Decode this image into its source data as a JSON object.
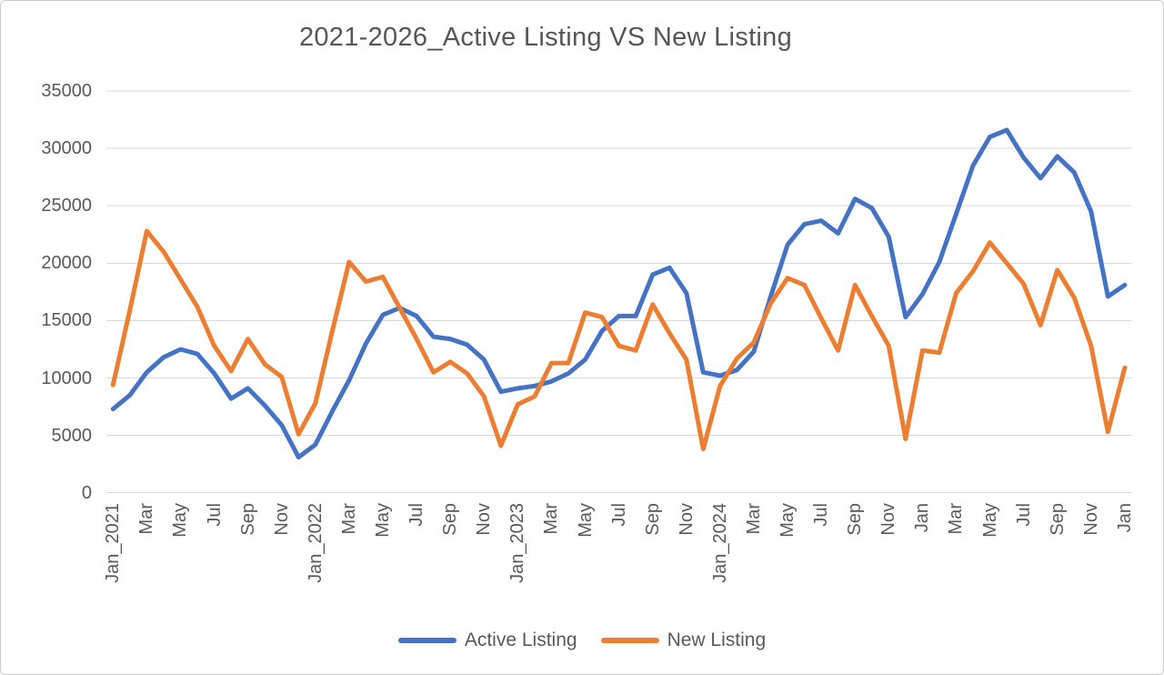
{
  "title": "2021-2026_Active Listing VS New Listing",
  "colors": {
    "active_listing": "#4472C4",
    "new_listing": "#ED7D31",
    "gridline": "#D9D9D9",
    "axis_text": "#595959",
    "title_text": "#565656",
    "background": "#FFFFFF"
  },
  "legend": {
    "position": "bottom",
    "items": [
      {
        "label": "Active Listing",
        "color": "#4472C4"
      },
      {
        "label": "New Listing",
        "color": "#ED7D31"
      }
    ]
  },
  "chart_data": {
    "type": "line",
    "title": "2021-2026_Active Listing VS New Listing",
    "xlabel": "",
    "ylabel": "",
    "ylim": [
      0,
      35000
    ],
    "y_ticks": [
      0,
      5000,
      10000,
      15000,
      20000,
      25000,
      30000,
      35000
    ],
    "grid": "horizontal",
    "legend_position": "bottom",
    "x_range": "Jan 2021 to Jan 2026, monthly, 61 points",
    "x_label_every_n_months": 2,
    "x_tick_labels": [
      "Jan_2021",
      "Mar",
      "May",
      "Jul",
      "Sep",
      "Nov",
      "Jan_2022",
      "Mar",
      "May",
      "Jul",
      "Sep",
      "Nov",
      "Jan_2023",
      "Mar",
      "May",
      "Jul",
      "Sep",
      "Nov",
      "Jan_2024",
      "Mar",
      "May",
      "Jul",
      "Sep",
      "Nov",
      "Jan",
      "Mar",
      "May",
      "Jul",
      "Sep",
      "Nov",
      "Jan"
    ],
    "series": [
      {
        "name": "Active Listing",
        "color": "#4472C4",
        "values": [
          7300,
          8500,
          10500,
          11800,
          12500,
          12100,
          10400,
          8200,
          9100,
          7600,
          5900,
          3100,
          4200,
          7100,
          9800,
          13000,
          15500,
          16100,
          15400,
          13600,
          13400,
          12900,
          11600,
          8800,
          9100,
          9300,
          9700,
          10400,
          11600,
          14100,
          15400,
          15400,
          19000,
          19600,
          17400,
          10500,
          10200,
          10700,
          12300,
          17100,
          21600,
          23400,
          23700,
          22600,
          25600,
          24800,
          22300,
          15300,
          17300,
          20100,
          24300,
          28500,
          31000,
          31600,
          29200,
          27400,
          29300,
          27900,
          24500,
          17100,
          18100
        ]
      },
      {
        "name": "New Listing",
        "color": "#ED7D31",
        "values": [
          9400,
          15900,
          22800,
          21000,
          18600,
          16200,
          12800,
          10600,
          13400,
          11200,
          10100,
          5100,
          7800,
          14100,
          20100,
          18400,
          18800,
          16100,
          13400,
          10500,
          11400,
          10400,
          8400,
          4100,
          7700,
          8400,
          11300,
          11300,
          15700,
          15300,
          12800,
          12400,
          16400,
          13900,
          11600,
          3800,
          9300,
          11700,
          13100,
          16500,
          18700,
          18100,
          15200,
          12400,
          18100,
          15400,
          12800,
          4700,
          12400,
          12200,
          17400,
          19300,
          21800,
          20000,
          18200,
          14600,
          19400,
          17000,
          12800,
          5300,
          10900
        ]
      }
    ]
  }
}
